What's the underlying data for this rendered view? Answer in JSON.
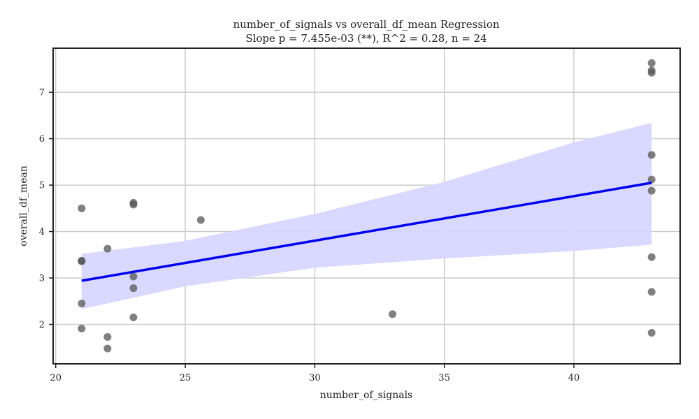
{
  "chart_data": {
    "type": "scatter",
    "title": "number_of_signals vs overall_df_mean Regression",
    "subtitle": "Slope p = 7.455e-03 (**), R^2 = 0.28, n = 24",
    "xlabel": "number_of_signals",
    "ylabel": "overall_df_mean",
    "xlim": [
      19.9,
      44.1
    ],
    "ylim": [
      1.15,
      7.95
    ],
    "xticks": [
      20,
      25,
      30,
      35,
      40
    ],
    "yticks": [
      2,
      3,
      4,
      5,
      6,
      7
    ],
    "grid": true,
    "points": [
      {
        "x": 21,
        "y": 4.5
      },
      {
        "x": 21,
        "y": 3.37
      },
      {
        "x": 21,
        "y": 3.36
      },
      {
        "x": 21,
        "y": 2.45
      },
      {
        "x": 21,
        "y": 1.91
      },
      {
        "x": 22,
        "y": 3.63
      },
      {
        "x": 22,
        "y": 1.73
      },
      {
        "x": 22,
        "y": 1.48
      },
      {
        "x": 23,
        "y": 4.62
      },
      {
        "x": 23,
        "y": 4.58
      },
      {
        "x": 23,
        "y": 3.03
      },
      {
        "x": 23,
        "y": 2.78
      },
      {
        "x": 23,
        "y": 2.15
      },
      {
        "x": 25.6,
        "y": 4.25
      },
      {
        "x": 33,
        "y": 2.22
      },
      {
        "x": 43,
        "y": 7.63
      },
      {
        "x": 43,
        "y": 7.47
      },
      {
        "x": 43,
        "y": 7.42
      },
      {
        "x": 43,
        "y": 5.65
      },
      {
        "x": 43,
        "y": 5.12
      },
      {
        "x": 43,
        "y": 4.88
      },
      {
        "x": 43,
        "y": 3.45
      },
      {
        "x": 43,
        "y": 2.7
      },
      {
        "x": 43,
        "y": 1.82
      }
    ],
    "regression": {
      "x": [
        21,
        43
      ],
      "y": [
        2.94,
        5.05
      ],
      "ci_band": [
        {
          "x": 21,
          "lower": 2.33,
          "upper": 3.52
        },
        {
          "x": 25,
          "lower": 2.82,
          "upper": 3.8
        },
        {
          "x": 30,
          "lower": 3.22,
          "upper": 4.38
        },
        {
          "x": 35,
          "lower": 3.42,
          "upper": 5.07
        },
        {
          "x": 40,
          "lower": 3.58,
          "upper": 5.92
        },
        {
          "x": 43,
          "lower": 3.72,
          "upper": 6.34
        }
      ]
    },
    "colors": {
      "points": "#555555",
      "line": "#0000ee",
      "band": "#d7d7ff"
    }
  }
}
